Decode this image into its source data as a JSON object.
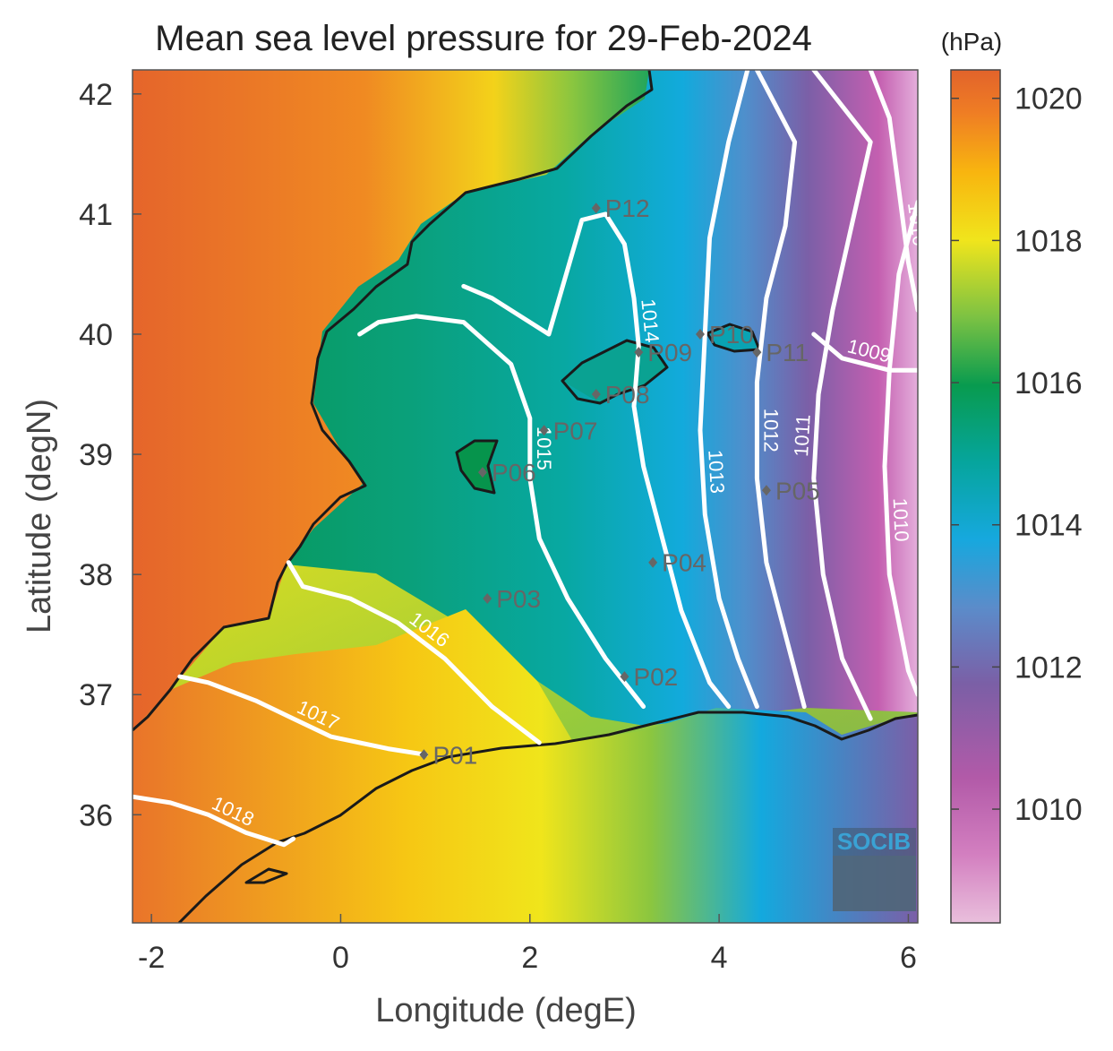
{
  "title": "Mean sea level pressure for 29-Feb-2024",
  "xlabel": "Longitude (degE)",
  "ylabel": "Latitude (degN)",
  "colorbar": {
    "unit": "(hPa)",
    "range": [
      1008.4,
      1020.4
    ],
    "ticks": [
      1010,
      1012,
      1014,
      1016,
      1018,
      1020
    ],
    "colors": [
      "#e9bfdc",
      "#c85fb0",
      "#8a5aa2",
      "#5f8ac9",
      "#12a8de",
      "#06a49e",
      "#089b4e",
      "#8bc63f",
      "#f2e71b",
      "#f9b40e",
      "#ef7c24",
      "#e2632b"
    ]
  },
  "chart_data": {
    "type": "heatmap",
    "title": "Mean sea level pressure for 29-Feb-2024",
    "xlabel": "Longitude (degE)",
    "ylabel": "Latitude (degN)",
    "xlim": [
      -2.2,
      6.1
    ],
    "ylim": [
      35.1,
      42.2
    ],
    "xticks": [
      -2,
      0,
      2,
      4,
      6
    ],
    "yticks": [
      36,
      37,
      38,
      39,
      40,
      41,
      42
    ],
    "contours": [
      {
        "level": "1009",
        "points": [
          [
            5.0,
            40.0
          ],
          [
            5.3,
            39.8
          ],
          [
            5.8,
            39.7
          ],
          [
            6.1,
            39.7
          ]
        ]
      },
      {
        "level": "1010",
        "points": [
          [
            5.6,
            42.2
          ],
          [
            5.8,
            41.8
          ],
          [
            5.9,
            41.2
          ],
          [
            6.0,
            40.6
          ],
          [
            6.1,
            40.2
          ]
        ]
      },
      {
        "level": "1010",
        "points": [
          [
            6.1,
            41.1
          ],
          [
            5.9,
            40.5
          ],
          [
            5.8,
            39.7
          ],
          [
            5.75,
            38.9
          ],
          [
            5.8,
            38.0
          ],
          [
            6.0,
            37.2
          ],
          [
            6.1,
            37.0
          ]
        ]
      },
      {
        "level": "1011",
        "points": [
          [
            5.0,
            42.2
          ],
          [
            5.6,
            41.6
          ],
          [
            5.4,
            40.9
          ],
          [
            5.2,
            40.2
          ],
          [
            5.05,
            39.5
          ],
          [
            5.0,
            38.8
          ],
          [
            5.1,
            38.0
          ],
          [
            5.3,
            37.3
          ],
          [
            5.6,
            36.8
          ]
        ]
      },
      {
        "level": "1012",
        "points": [
          [
            4.4,
            42.2
          ],
          [
            4.8,
            41.6
          ],
          [
            4.7,
            40.9
          ],
          [
            4.5,
            40.3
          ],
          [
            4.4,
            39.6
          ],
          [
            4.4,
            38.8
          ],
          [
            4.5,
            38.1
          ],
          [
            4.7,
            37.5
          ],
          [
            4.9,
            36.9
          ]
        ]
      },
      {
        "level": "1013",
        "points": [
          [
            4.3,
            42.2
          ],
          [
            4.1,
            41.6
          ],
          [
            3.9,
            40.8
          ],
          [
            3.85,
            40.0
          ],
          [
            3.8,
            39.2
          ],
          [
            3.85,
            38.5
          ],
          [
            4.0,
            37.8
          ],
          [
            4.2,
            37.3
          ],
          [
            4.4,
            36.9
          ]
        ]
      },
      {
        "level": "1014",
        "points": [
          [
            1.3,
            40.4
          ],
          [
            1.6,
            40.3
          ],
          [
            2.2,
            40.0
          ],
          [
            2.55,
            40.95
          ],
          [
            2.8,
            41.0
          ],
          [
            3.0,
            40.75
          ],
          [
            3.1,
            40.3
          ],
          [
            3.15,
            39.9
          ],
          [
            3.1,
            39.4
          ],
          [
            3.2,
            38.9
          ],
          [
            3.4,
            38.3
          ],
          [
            3.6,
            37.7
          ],
          [
            3.9,
            37.1
          ],
          [
            4.1,
            36.9
          ]
        ]
      },
      {
        "level": "1015",
        "points": [
          [
            0.2,
            40.0
          ],
          [
            0.4,
            40.1
          ],
          [
            0.8,
            40.15
          ],
          [
            1.3,
            40.1
          ],
          [
            1.8,
            39.75
          ],
          [
            2.0,
            39.3
          ],
          [
            2.0,
            38.8
          ],
          [
            2.1,
            38.3
          ],
          [
            2.4,
            37.8
          ],
          [
            2.8,
            37.3
          ],
          [
            3.2,
            36.9
          ]
        ]
      },
      {
        "level": "1016",
        "points": [
          [
            -0.55,
            38.1
          ],
          [
            -0.4,
            37.9
          ],
          [
            0.1,
            37.8
          ],
          [
            0.6,
            37.6
          ],
          [
            1.1,
            37.3
          ],
          [
            1.6,
            36.9
          ],
          [
            2.1,
            36.6
          ]
        ]
      },
      {
        "level": "1017",
        "points": [
          [
            -1.7,
            37.15
          ],
          [
            -1.4,
            37.1
          ],
          [
            -0.9,
            36.95
          ],
          [
            -0.5,
            36.8
          ],
          [
            -0.1,
            36.65
          ],
          [
            0.5,
            36.55
          ],
          [
            0.9,
            36.5
          ]
        ]
      },
      {
        "level": "1018",
        "points": [
          [
            -2.2,
            36.15
          ],
          [
            -1.8,
            36.1
          ],
          [
            -1.4,
            36.0
          ],
          [
            -1.0,
            35.85
          ],
          [
            -0.6,
            35.75
          ],
          [
            -0.5,
            35.8
          ]
        ]
      }
    ],
    "stations": [
      {
        "name": "P01",
        "lon": 0.88,
        "lat": 36.5
      },
      {
        "name": "P02",
        "lon": 3.0,
        "lat": 37.15
      },
      {
        "name": "P03",
        "lon": 1.55,
        "lat": 37.8
      },
      {
        "name": "P04",
        "lon": 3.3,
        "lat": 38.1
      },
      {
        "name": "P05",
        "lon": 4.5,
        "lat": 38.7
      },
      {
        "name": "P06",
        "lon": 1.5,
        "lat": 38.85
      },
      {
        "name": "P07",
        "lon": 2.15,
        "lat": 39.2
      },
      {
        "name": "P08",
        "lon": 2.7,
        "lat": 39.5
      },
      {
        "name": "P09",
        "lon": 3.15,
        "lat": 39.85
      },
      {
        "name": "P10",
        "lon": 3.8,
        "lat": 40.0
      },
      {
        "name": "P11",
        "lon": 4.4,
        "lat": 39.85
      },
      {
        "name": "P12",
        "lon": 2.7,
        "lat": 41.05
      }
    ]
  },
  "logo": {
    "text": "SOCIB"
  }
}
